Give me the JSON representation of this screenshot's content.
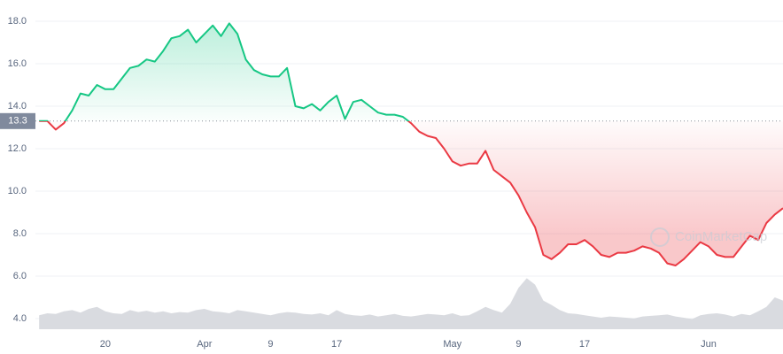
{
  "chart_data": {
    "type": "line",
    "watermark": "CoinMarketCap",
    "baseline": 13.3,
    "x": [
      0,
      1,
      2,
      3,
      4,
      5,
      6,
      7,
      8,
      9,
      10,
      11,
      12,
      13,
      14,
      15,
      16,
      17,
      18,
      19,
      20,
      21,
      22,
      23,
      24,
      25,
      26,
      27,
      28,
      29,
      30,
      31,
      32,
      33,
      34,
      35,
      36,
      37,
      38,
      39,
      40,
      41,
      42,
      43,
      44,
      45,
      46,
      47,
      48,
      49,
      50,
      51,
      52,
      53,
      54,
      55,
      56,
      57,
      58,
      59,
      60,
      61,
      62,
      63,
      64,
      65,
      66,
      67,
      68,
      69,
      70,
      71,
      72,
      73,
      74,
      75,
      76,
      77,
      78,
      79,
      80,
      81,
      82,
      83,
      84,
      85,
      86,
      87,
      88,
      89,
      90
    ],
    "series": [
      {
        "color": "#16c784",
        "down_color": "#ea3943",
        "values": [
          13.3,
          13.3,
          12.9,
          13.2,
          13.8,
          14.6,
          14.5,
          15.0,
          14.8,
          14.8,
          15.3,
          15.8,
          15.9,
          16.2,
          16.1,
          16.6,
          17.2,
          17.3,
          17.6,
          17.0,
          17.4,
          17.8,
          17.3,
          17.9,
          17.4,
          16.2,
          15.7,
          15.5,
          15.4,
          15.4,
          15.8,
          14.0,
          13.9,
          14.1,
          13.8,
          14.2,
          14.5,
          13.4,
          14.2,
          14.3,
          14.0,
          13.7,
          13.6,
          13.6,
          13.5,
          13.2,
          12.8,
          12.6,
          12.5,
          12.0,
          11.4,
          11.2,
          11.3,
          11.3,
          11.9,
          11.0,
          10.7,
          10.4,
          9.8,
          9.0,
          8.3,
          7.0,
          6.8,
          7.1,
          7.5,
          7.5,
          7.7,
          7.4,
          7.0,
          6.9,
          7.1,
          7.1,
          7.2,
          7.4,
          7.3,
          7.1,
          6.6,
          6.5,
          6.8,
          7.2,
          7.6,
          7.4,
          7.0,
          6.9,
          6.9,
          7.4,
          7.9,
          7.7,
          8.5,
          8.9,
          9.2
        ]
      },
      {
        "axis": "y2",
        "color": "#d9dbe0",
        "values": [
          22,
          25,
          24,
          28,
          30,
          26,
          32,
          35,
          28,
          25,
          24,
          30,
          27,
          29,
          26,
          28,
          25,
          27,
          26,
          30,
          32,
          28,
          27,
          25,
          30,
          28,
          26,
          24,
          22,
          25,
          27,
          26,
          24,
          23,
          25,
          22,
          30,
          24,
          22,
          21,
          23,
          20,
          22,
          24,
          21,
          20,
          22,
          24,
          23,
          22,
          25,
          21,
          22,
          28,
          35,
          30,
          26,
          40,
          65,
          80,
          70,
          45,
          38,
          30,
          25,
          24,
          22,
          20,
          18,
          20,
          19,
          18,
          17,
          20,
          21,
          22,
          23,
          20,
          18,
          16,
          22,
          24,
          25,
          23,
          20,
          24,
          22,
          28,
          35,
          50,
          45
        ]
      }
    ],
    "xlim": [
      -0.45,
      90
    ],
    "xticks": [
      {
        "value": 8,
        "label": "20"
      },
      {
        "value": 20,
        "label": "Apr"
      },
      {
        "value": 28,
        "label": "9"
      },
      {
        "value": 36,
        "label": "17"
      },
      {
        "value": 50,
        "label": "May"
      },
      {
        "value": 58,
        "label": "9"
      },
      {
        "value": 66,
        "label": "17"
      },
      {
        "value": 81,
        "label": "Jun"
      }
    ],
    "ylim": [
      3.5,
      19
    ],
    "yticks": [
      {
        "value": 4,
        "label": "4.0"
      },
      {
        "value": 6,
        "label": "6.0"
      },
      {
        "value": 8,
        "label": "8.0"
      },
      {
        "value": 10,
        "label": "10.0"
      },
      {
        "value": 12,
        "label": "12.0"
      },
      {
        "value": 14,
        "label": "14.0"
      },
      {
        "value": 16,
        "label": "16.0"
      },
      {
        "value": 18,
        "label": "18.0"
      }
    ],
    "y2lim": [
      0,
      100
    ],
    "grid": true
  }
}
